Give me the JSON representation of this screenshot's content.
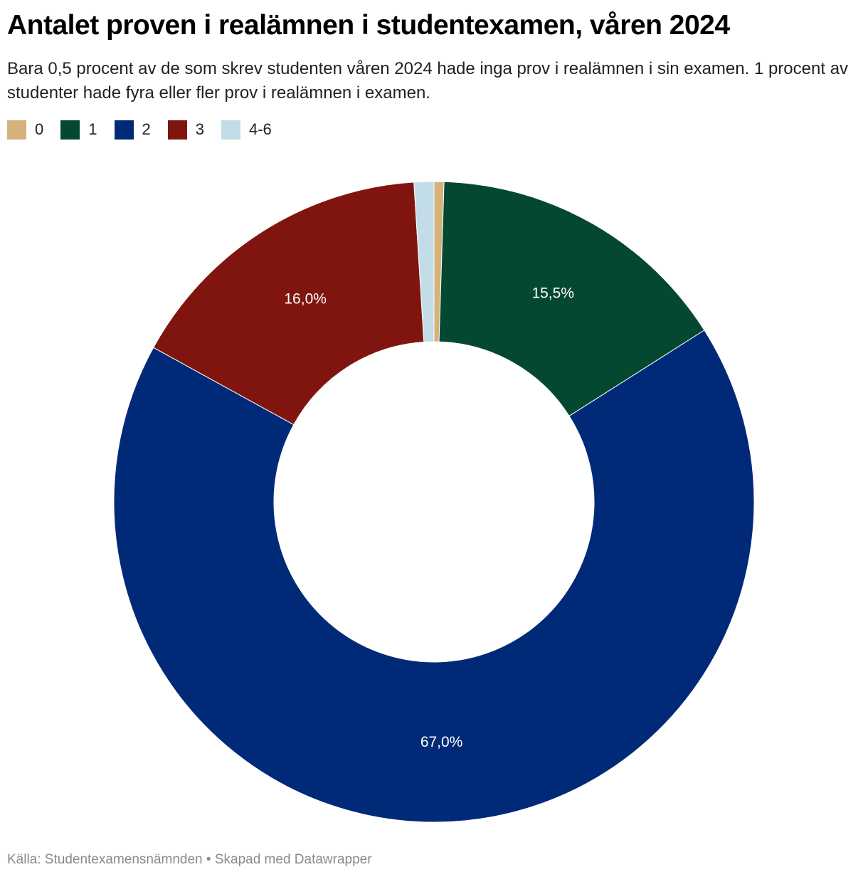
{
  "chart_data": {
    "type": "pie",
    "variant": "donut",
    "title": "Antalet proven i realämnen i studentexamen, våren 2024",
    "subtitle": "Bara 0,5 procent av de som skrev studenten våren 2024 hade inga prov i realämnen i sin examen. 1 procent av studenter hade fyra eller fler prov i realämnen i examen.",
    "categories": [
      "0",
      "1",
      "2",
      "3",
      "4-6"
    ],
    "values": [
      0.5,
      15.5,
      67.0,
      16.0,
      1.0
    ],
    "value_labels": [
      "",
      "15,5%",
      "67,0%",
      "16,0%",
      ""
    ],
    "colors": [
      "#d4b27a",
      "#044831",
      "#002a78",
      "#801510",
      "#c2dde8"
    ],
    "label_color": "#ffffff",
    "legend_position": "top-left",
    "source": "Källa: Studentexamensnämnden • Skapad med Datawrapper"
  }
}
